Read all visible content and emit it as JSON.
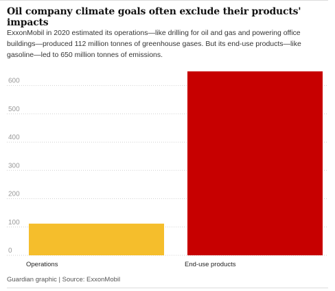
{
  "chart_data": {
    "type": "bar",
    "title": "Oil company climate goals often exclude their products' impacts",
    "subtitle": "ExxonMobil in 2020 estimated its operations—like drilling for oil and gas and powering office buildings—produced 112 million tonnes of greenhouse gases. But its end-use products—like gasoline—led to 650 million tonnes of emissions.",
    "source": "Guardian graphic | Source: ExxonMobil",
    "categories": [
      "Operations",
      "End-use products"
    ],
    "values": [
      112,
      650
    ],
    "colors": [
      "#f5be2c",
      "#c70000"
    ],
    "ylim": [
      0,
      650
    ],
    "yticks": [
      0,
      100,
      200,
      300,
      400,
      500,
      600
    ],
    "grid": true
  }
}
